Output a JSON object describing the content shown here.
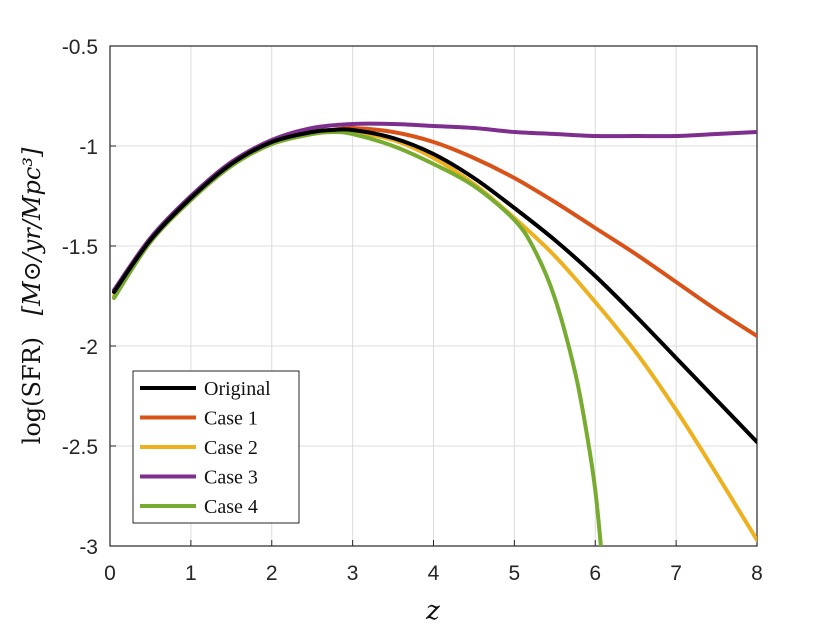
{
  "chart_data": {
    "type": "line",
    "xlabel": "z",
    "ylabel_prefix": "log(SFR)",
    "ylabel_units": "[M⊙/yr/Mpc³]",
    "xlim": [
      0,
      8
    ],
    "ylim": [
      -3,
      -0.5
    ],
    "xticks": [
      "0",
      "1",
      "2",
      "3",
      "4",
      "5",
      "6",
      "7",
      "8"
    ],
    "yticks": [
      "-0.5",
      "-1",
      "-1.5",
      "-2",
      "-2.5",
      "-3"
    ],
    "grid": true,
    "legend_position": "bottom-left",
    "series": [
      {
        "name": "Original",
        "color": "#000000",
        "x": [
          0.05,
          0.5,
          1,
          1.5,
          2,
          2.5,
          2.75,
          3,
          3.5,
          4,
          4.5,
          5,
          5.5,
          6,
          6.5,
          7,
          7.5,
          8
        ],
        "y": [
          -1.73,
          -1.47,
          -1.26,
          -1.09,
          -0.98,
          -0.93,
          -0.92,
          -0.92,
          -0.96,
          -1.04,
          -1.16,
          -1.31,
          -1.47,
          -1.65,
          -1.85,
          -2.06,
          -2.27,
          -2.48
        ]
      },
      {
        "name": "Case 1",
        "color": "#d95319",
        "x": [
          0.05,
          0.5,
          1,
          1.5,
          2,
          2.5,
          2.75,
          3,
          3.5,
          4,
          4.5,
          5,
          5.5,
          6,
          6.5,
          7,
          7.5,
          8
        ],
        "y": [
          -1.73,
          -1.47,
          -1.26,
          -1.09,
          -0.98,
          -0.93,
          -0.92,
          -0.91,
          -0.93,
          -0.98,
          -1.06,
          -1.16,
          -1.28,
          -1.41,
          -1.54,
          -1.68,
          -1.82,
          -1.95
        ]
      },
      {
        "name": "Case 2",
        "color": "#edb120",
        "x": [
          0.05,
          0.5,
          1,
          1.5,
          2,
          2.5,
          2.75,
          3,
          3.5,
          4,
          4.5,
          5,
          5.5,
          6,
          6.5,
          7,
          7.5,
          8
        ],
        "y": [
          -1.75,
          -1.48,
          -1.27,
          -1.1,
          -0.99,
          -0.94,
          -0.93,
          -0.93,
          -0.97,
          -1.06,
          -1.19,
          -1.36,
          -1.55,
          -1.78,
          -2.03,
          -2.32,
          -2.64,
          -2.97
        ]
      },
      {
        "name": "Case 3",
        "color": "#7e2f8e",
        "x": [
          0.05,
          0.5,
          1,
          1.5,
          2,
          2.5,
          3,
          3.5,
          4,
          4.5,
          5,
          5.5,
          6,
          6.5,
          7,
          7.5,
          8
        ],
        "y": [
          -1.72,
          -1.46,
          -1.25,
          -1.08,
          -0.97,
          -0.91,
          -0.89,
          -0.89,
          -0.9,
          -0.91,
          -0.93,
          -0.94,
          -0.95,
          -0.95,
          -0.95,
          -0.94,
          -0.93
        ]
      },
      {
        "name": "Case 4",
        "color": "#77ac30",
        "x": [
          0.05,
          0.5,
          1,
          1.5,
          2,
          2.5,
          2.75,
          3,
          3.5,
          4,
          4.5,
          5,
          5.25,
          5.5,
          5.75,
          5.9,
          6.0,
          6.07
        ],
        "y": [
          -1.76,
          -1.48,
          -1.27,
          -1.1,
          -0.99,
          -0.94,
          -0.93,
          -0.94,
          -1.0,
          -1.09,
          -1.2,
          -1.37,
          -1.52,
          -1.76,
          -2.13,
          -2.45,
          -2.72,
          -3.0
        ]
      }
    ]
  }
}
